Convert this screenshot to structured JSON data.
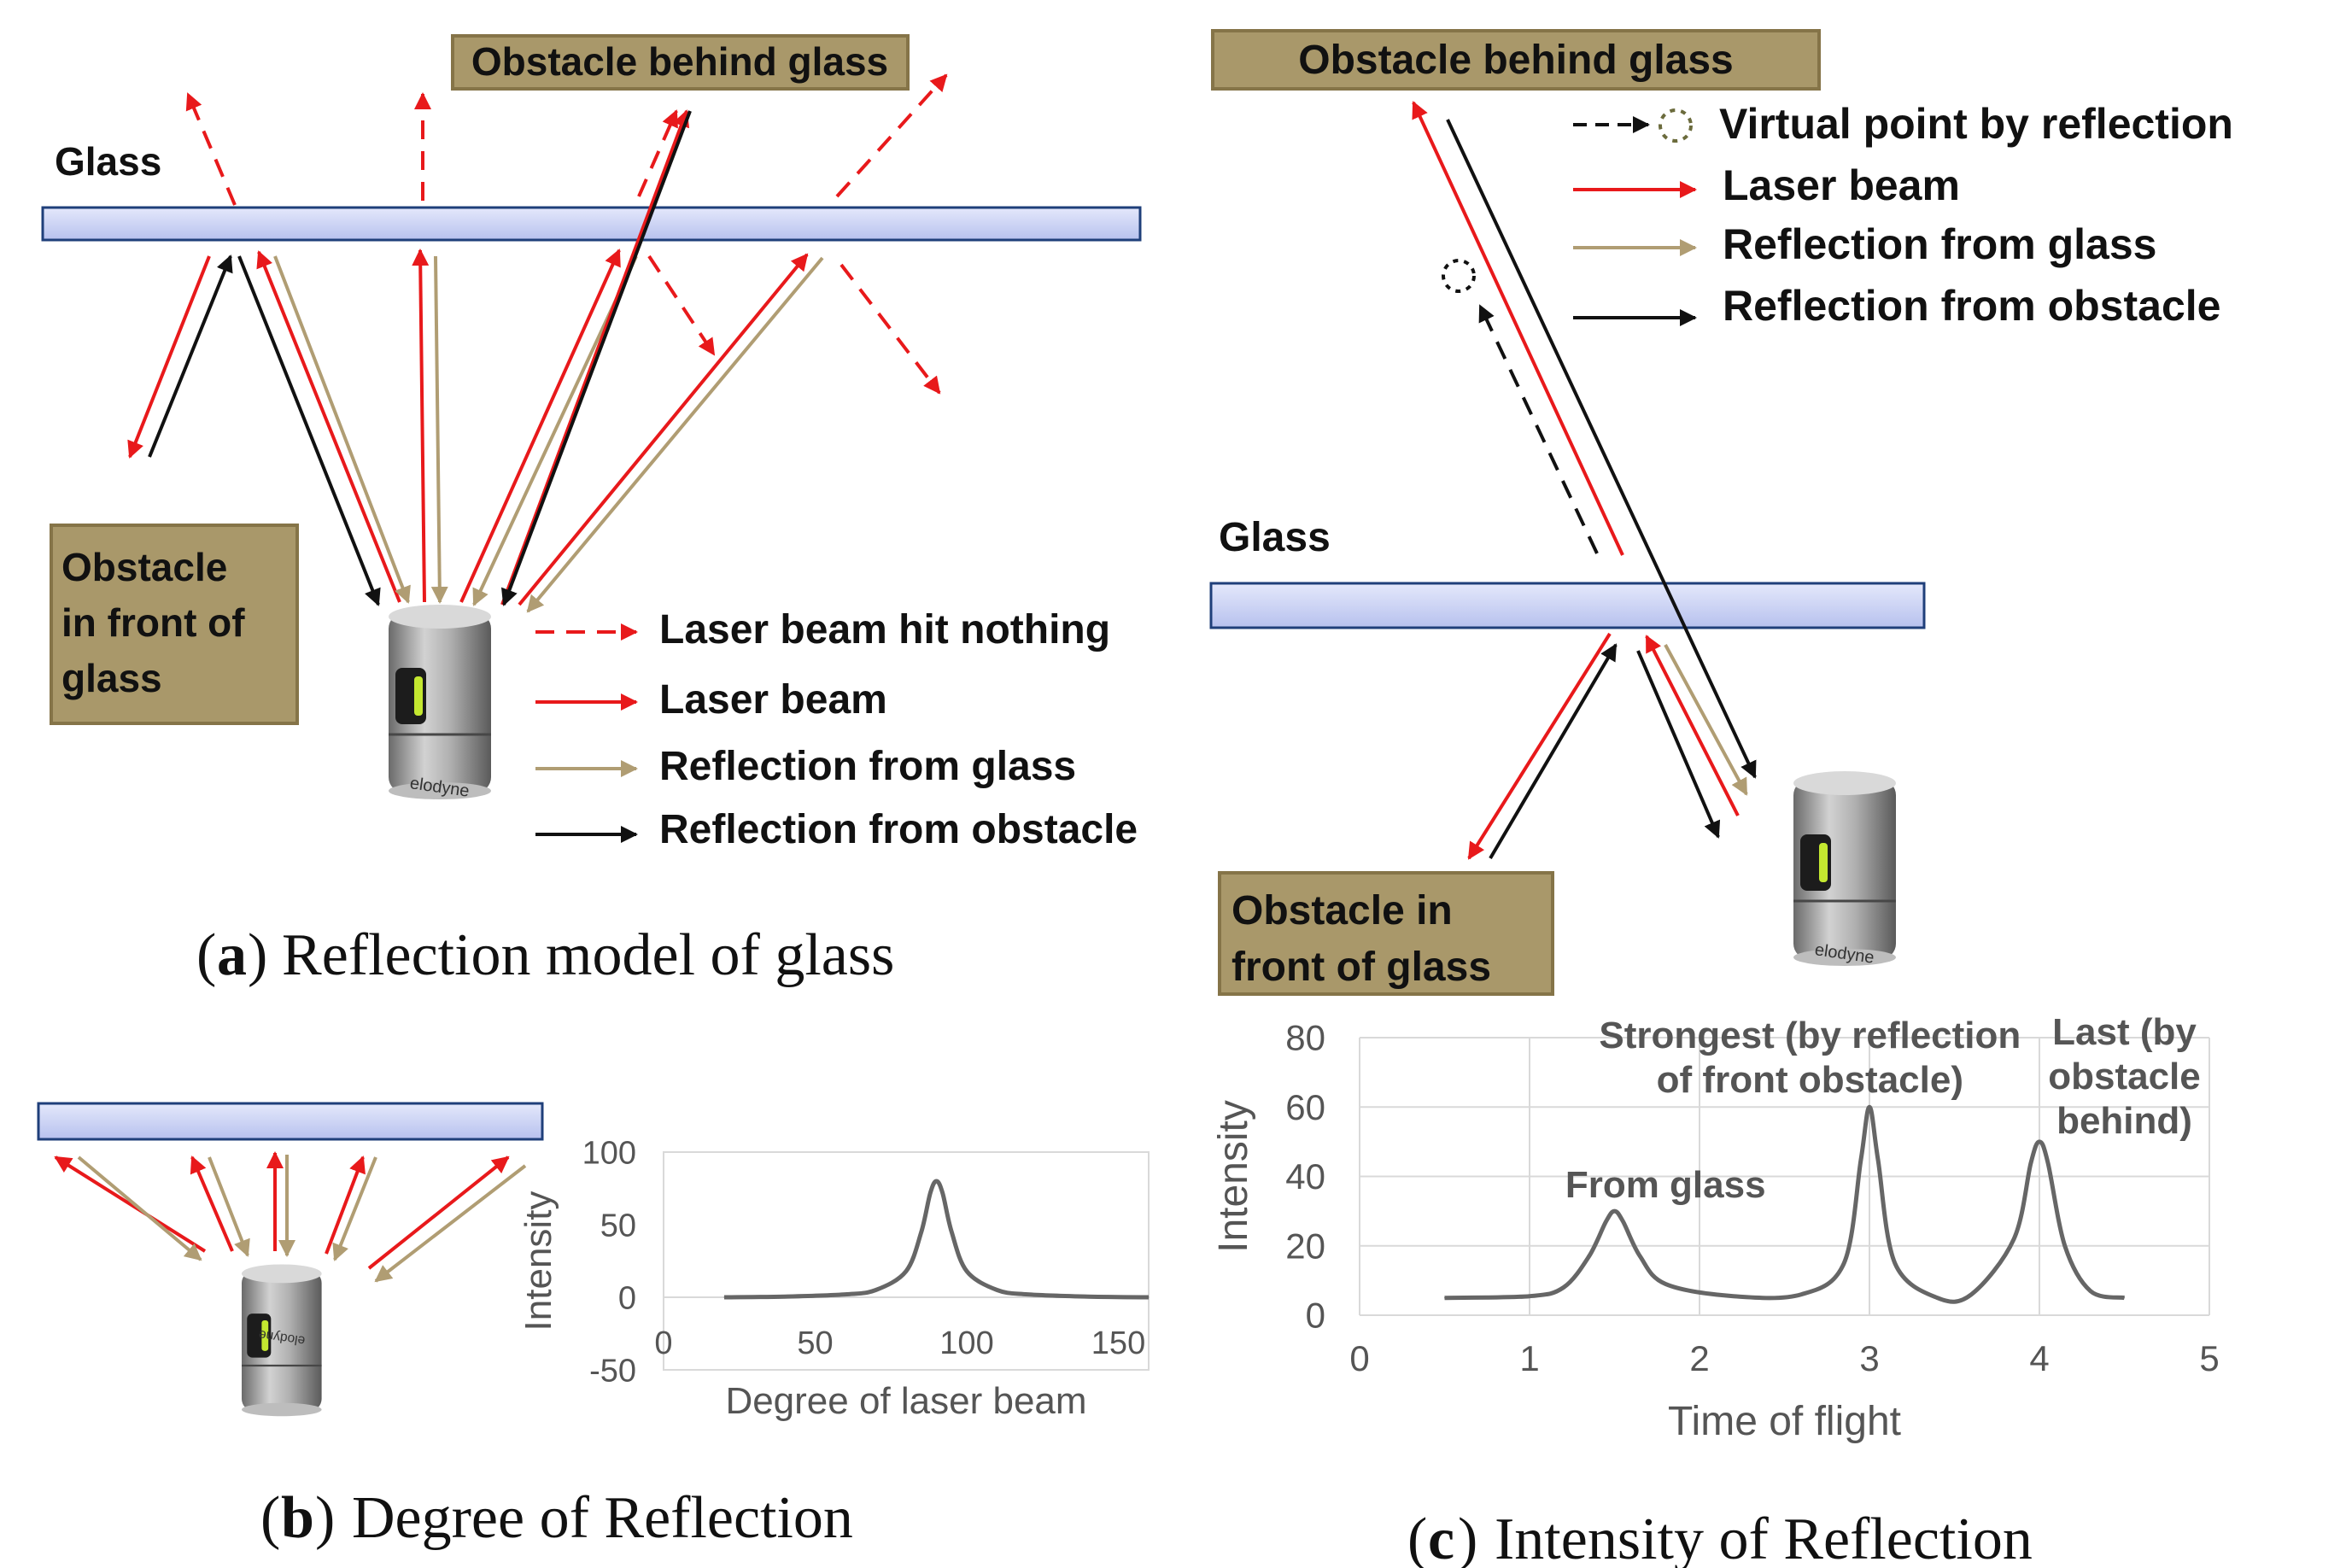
{
  "panel_a": {
    "glass_label": "Glass",
    "obstacle_behind_label": "Obstacle behind glass",
    "obstacle_front_lines": [
      "Obstacle",
      "in front of",
      "glass"
    ],
    "legend": [
      {
        "label": "Laser beam hit nothing",
        "style": "dashed-red"
      },
      {
        "label": "Laser beam",
        "style": "red"
      },
      {
        "label": "Reflection from glass",
        "style": "tan"
      },
      {
        "label": "Reflection from obstacle",
        "style": "black"
      }
    ],
    "caption_letter": "a",
    "caption_text": "Reflection model of glass",
    "sensor_brand": "elodyne"
  },
  "panel_b": {
    "caption_letter": "b",
    "caption_text": "Degree of Reflection"
  },
  "panel_c": {
    "glass_label": "Glass",
    "obstacle_behind_label": "Obstacle behind glass",
    "obstacle_front_lines": [
      "Obstacle in",
      "front of glass"
    ],
    "legend": [
      {
        "label": "Virtual point by reflection",
        "style": "virtual"
      },
      {
        "label": "Laser beam",
        "style": "red"
      },
      {
        "label": "Reflection from glass",
        "style": "tan"
      },
      {
        "label": "Reflection from obstacle",
        "style": "black"
      }
    ],
    "caption_letter": "c",
    "caption_text": "Intensity of Reflection",
    "sensor_brand": "elodyne"
  },
  "colors": {
    "laser": "#e8191b",
    "glass_reflection": "#b09d73",
    "obstacle_reflection": "#111111",
    "glass_fill": "#c8d0f4",
    "glass_stroke": "#1f3f7a",
    "label_box_fill": "#a9986a",
    "label_box_stroke": "#857448",
    "curve": "#666666"
  },
  "chart_data": [
    {
      "type": "line",
      "title": "Degree of Reflection",
      "xlabel": "Degree of laser beam",
      "ylabel": "Intensity",
      "xlim": [
        0,
        160
      ],
      "ylim": [
        -50,
        100
      ],
      "xticks": [
        0,
        50,
        100,
        150
      ],
      "yticks": [
        -50,
        0,
        50,
        100
      ],
      "series": [
        {
          "name": "Intensity",
          "x": [
            20,
            40,
            60,
            70,
            80,
            85,
            88,
            90,
            92,
            95,
            100,
            110,
            120,
            140,
            160
          ],
          "y": [
            0,
            0.5,
            2,
            5,
            18,
            45,
            72,
            80,
            72,
            45,
            18,
            5,
            2,
            0.5,
            0
          ]
        }
      ]
    },
    {
      "type": "line",
      "title": "Intensity of Reflection",
      "xlabel": "Time of flight",
      "ylabel": "Intensity",
      "xlim": [
        0,
        5
      ],
      "ylim": [
        0,
        80
      ],
      "xticks": [
        0,
        1,
        2,
        3,
        4,
        5
      ],
      "yticks": [
        0,
        20,
        40,
        60,
        80
      ],
      "series": [
        {
          "name": "Intensity",
          "x": [
            0.5,
            1.0,
            1.2,
            1.35,
            1.45,
            1.5,
            1.55,
            1.65,
            1.8,
            2.2,
            2.6,
            2.85,
            2.95,
            3.0,
            3.05,
            3.15,
            3.4,
            3.6,
            3.85,
            3.95,
            4.0,
            4.05,
            4.15,
            4.3,
            4.5
          ],
          "y": [
            5,
            5.5,
            8,
            17,
            27,
            30,
            27,
            17,
            9,
            5.5,
            6,
            15,
            45,
            60,
            45,
            15,
            5,
            6,
            22,
            44,
            50,
            44,
            20,
            7,
            5
          ]
        }
      ],
      "annotations": [
        "From glass",
        "Strongest (by reflection of front obstacle)",
        "Last (by obstacle behind)"
      ]
    }
  ]
}
